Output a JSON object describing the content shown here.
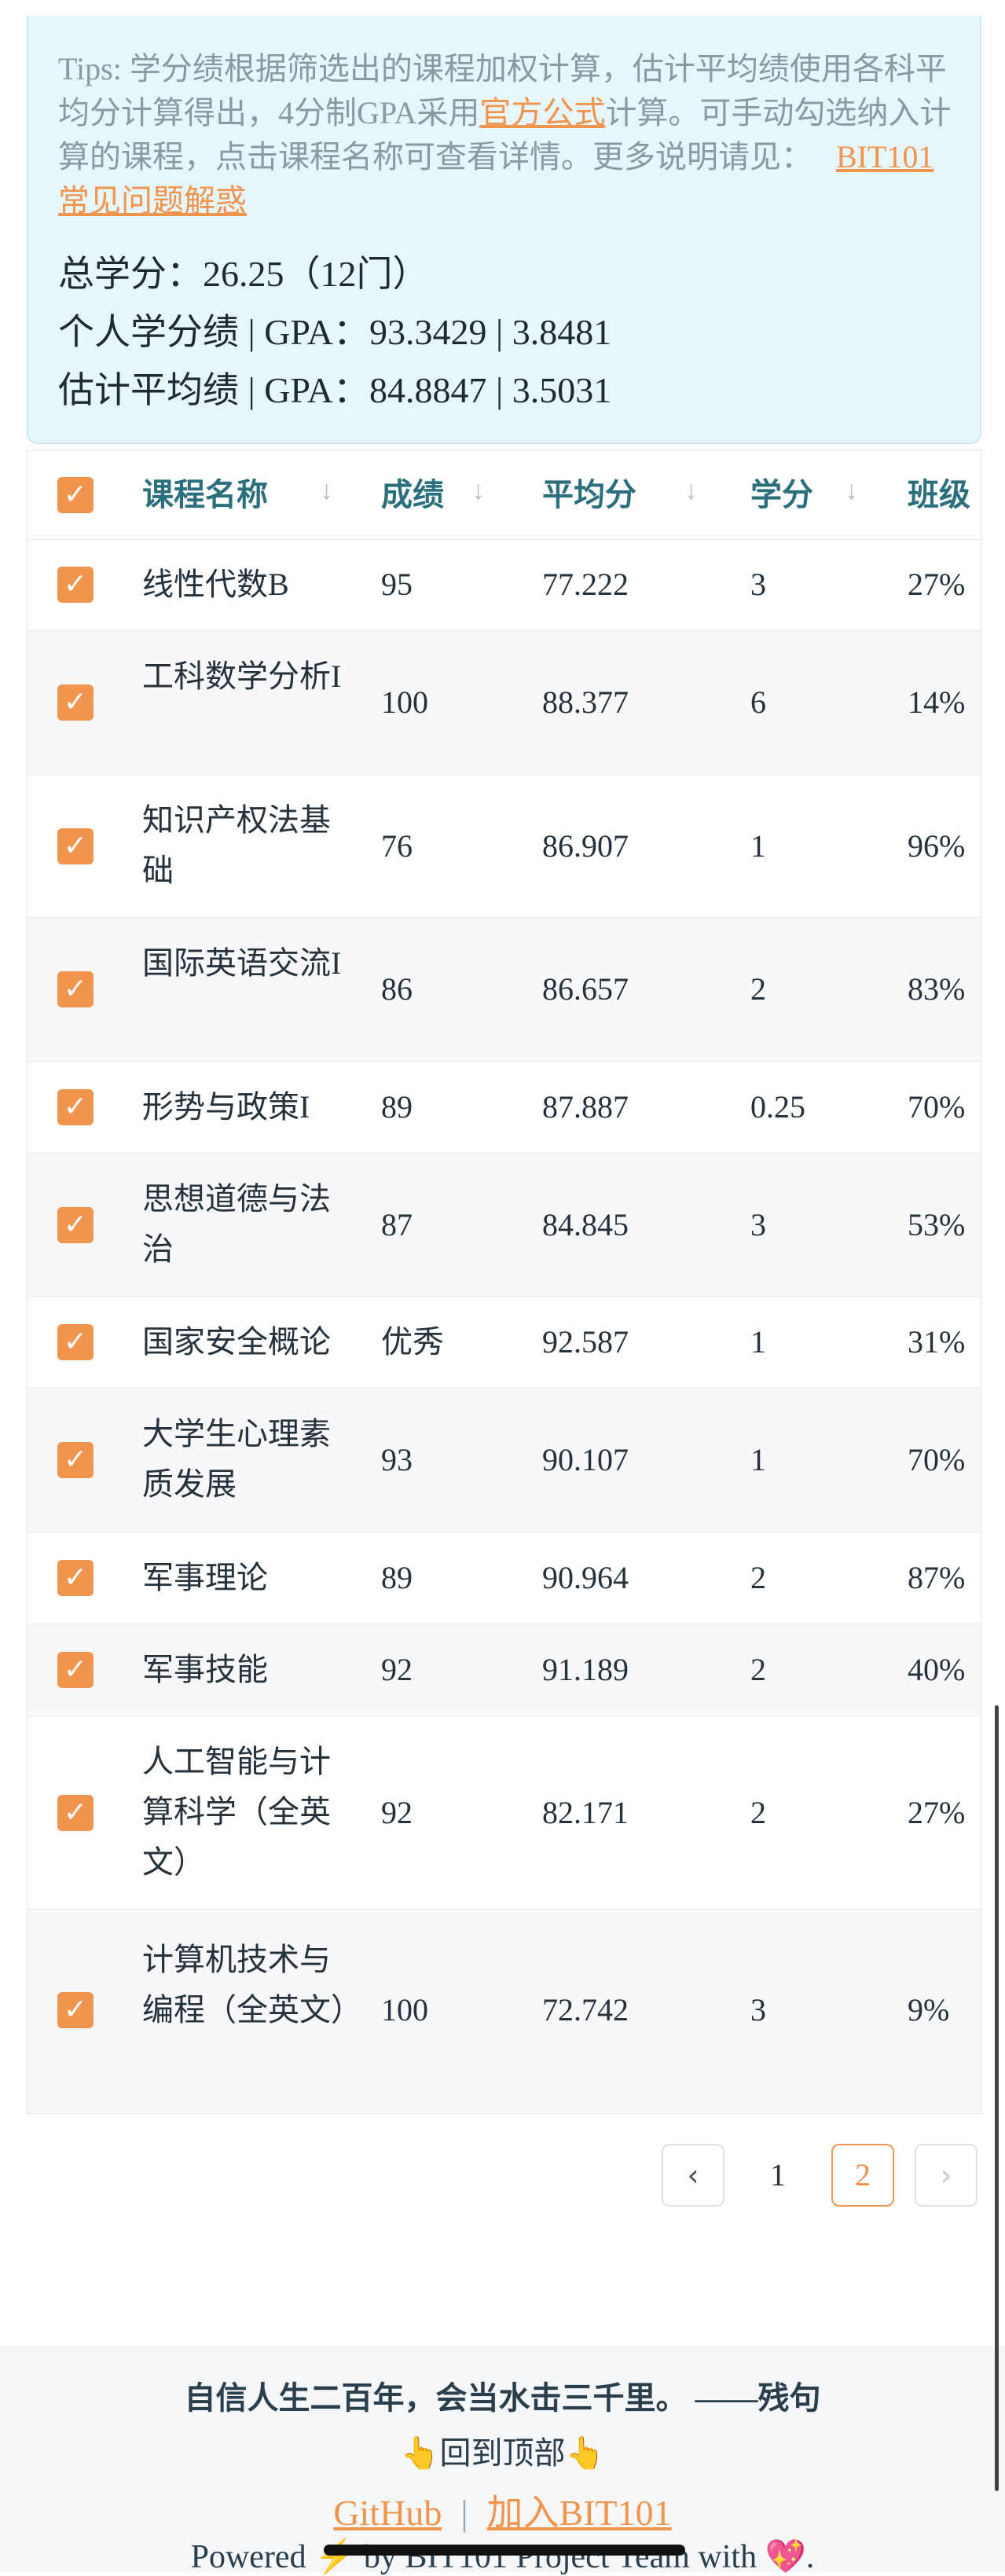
{
  "tips": {
    "prefix": "Tips: 学分绩根据筛选出的课程加权计算，估计平均绩使用各科平均分计算得出，4分制GPA采用",
    "link_formula": "官方公式",
    "middle": "计算。可手动勾选纳入计算的课程，点击课程名称可查看详情。更多说明请见：",
    "link_faq": "BIT101常见问题解惑"
  },
  "summary": {
    "total_credits": "总学分：26.25（12门）",
    "personal": "个人学分绩 | GPA：93.3429 | 3.8481",
    "estimated": "估计平均绩 | GPA：84.8847 | 3.5031"
  },
  "table": {
    "headers": {
      "name": "课程名称",
      "score": "成绩",
      "avg": "平均分",
      "credit": "学分",
      "rank": "班级"
    },
    "sort_icon": "↓",
    "check_icon": "✓",
    "rows": [
      {
        "name": "线性代数B",
        "score": "95",
        "avg": "77.222",
        "credit": "3",
        "rank": "27%"
      },
      {
        "name": "工科数学分析I",
        "score": "100",
        "avg": "88.377",
        "credit": "6",
        "rank": "14%"
      },
      {
        "name": "知识产权法基础",
        "score": "76",
        "avg": "86.907",
        "credit": "1",
        "rank": "96%"
      },
      {
        "name": "国际英语交流I",
        "score": "86",
        "avg": "86.657",
        "credit": "2",
        "rank": "83%"
      },
      {
        "name": "形势与政策I",
        "score": "89",
        "avg": "87.887",
        "credit": "0.25",
        "rank": "70%"
      },
      {
        "name": "思想道德与法治",
        "score": "87",
        "avg": "84.845",
        "credit": "3",
        "rank": "53%"
      },
      {
        "name": "国家安全概论",
        "score": "优秀",
        "avg": "92.587",
        "credit": "1",
        "rank": "31%"
      },
      {
        "name": "大学生心理素质发展",
        "score": "93",
        "avg": "90.107",
        "credit": "1",
        "rank": "70%"
      },
      {
        "name": "军事理论",
        "score": "89",
        "avg": "90.964",
        "credit": "2",
        "rank": "87%"
      },
      {
        "name": "军事技能",
        "score": "92",
        "avg": "91.189",
        "credit": "2",
        "rank": "40%"
      },
      {
        "name": "人工智能与计算科学（全英文）",
        "score": "92",
        "avg": "82.171",
        "credit": "2",
        "rank": "27%"
      },
      {
        "name": "计算机技术与编程（全英文）",
        "score": "100",
        "avg": "72.742",
        "credit": "3",
        "rank": "9%"
      }
    ]
  },
  "pagination": {
    "prev_icon": "‹",
    "next_icon": "›",
    "pages": [
      "1",
      "2"
    ],
    "current": "2"
  },
  "footer": {
    "quote": "自信人生二百年，会当水击三千里。 ——残句",
    "back_to_top": "回到顶部",
    "hand_icon": "👆",
    "github": "GitHub",
    "separator": "|",
    "join": "加入BIT101",
    "powered": "Powered ⚡ by BIT101 Project Team with 💖."
  }
}
